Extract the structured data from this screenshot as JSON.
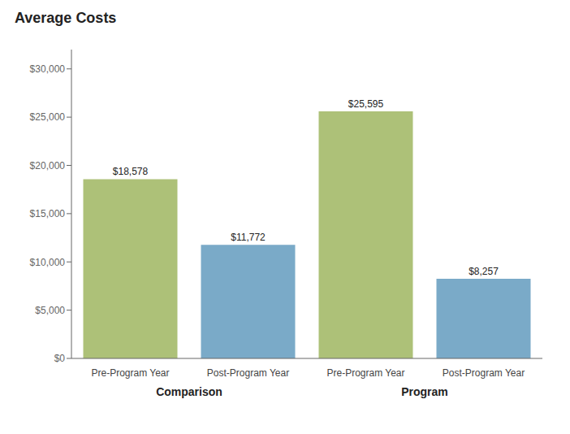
{
  "chart_data": {
    "type": "bar",
    "title": "Average Costs",
    "categories": [
      "Pre-Program Year",
      "Post-Program Year",
      "Pre-Program Year",
      "Post-Program Year"
    ],
    "groups": [
      "Comparison",
      "Comparison",
      "Program",
      "Program"
    ],
    "values": [
      18578,
      11772,
      25595,
      8257
    ],
    "value_labels": [
      "$18,578",
      "$11,772",
      "$25,595",
      "$8,257"
    ],
    "data_labels": true,
    "colors": [
      "#adc178",
      "#7aaac8",
      "#adc178",
      "#7aaac8"
    ],
    "ylim": [
      0,
      32000
    ],
    "yticks": [
      {
        "value": 0,
        "label": "$0"
      },
      {
        "value": 5000,
        "label": "$5,000"
      },
      {
        "value": 10000,
        "label": "$10,000"
      },
      {
        "value": 15000,
        "label": "$15,000"
      },
      {
        "value": 20000,
        "label": "$20,000"
      },
      {
        "value": 25000,
        "label": "$25,000"
      },
      {
        "value": 30000,
        "label": "$30,000"
      }
    ],
    "grid": false
  }
}
